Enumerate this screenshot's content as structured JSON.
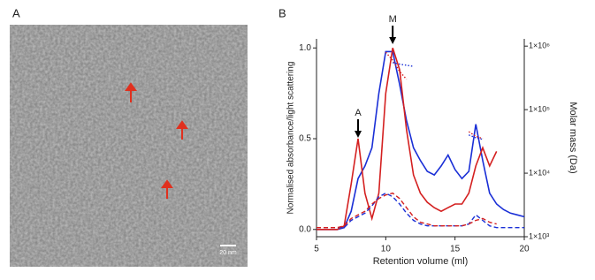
{
  "panels": {
    "a": {
      "label": "A",
      "scale_bar": "20 nm"
    },
    "b": {
      "label": "B"
    }
  },
  "chart_data": {
    "type": "line",
    "x_label": "Retention volume (ml)",
    "y_label": "Normalised absorbance/light scattering",
    "y2_label": "Molar mass (Da)",
    "xlim": [
      5,
      20
    ],
    "xticks": [
      5,
      10,
      15,
      20
    ],
    "ylim": [
      -0.04,
      1.05
    ],
    "yticks": [
      {
        "value": 0,
        "label": "0.0"
      },
      {
        "value": 0.5,
        "label": "0.5"
      },
      {
        "value": 1,
        "label": "1.0"
      }
    ],
    "y2lim": [
      1000,
      1300000
    ],
    "y2scale": "log",
    "y2ticks": [
      {
        "value": 1000,
        "label": "1×10³"
      },
      {
        "value": 10000,
        "label": "1×10⁴"
      },
      {
        "value": 100000,
        "label": "1×10⁵"
      },
      {
        "value": 1000000,
        "label": "1×10⁶"
      }
    ],
    "annotations": [
      {
        "text": "A",
        "x": 8
      },
      {
        "text": "M",
        "x": 10.5
      }
    ],
    "x": [
      5,
      5.5,
      6,
      6.5,
      7,
      7.5,
      8,
      8.5,
      9,
      9.5,
      10,
      10.5,
      11,
      11.5,
      12,
      12.5,
      13,
      13.5,
      14,
      14.5,
      15,
      15.5,
      16,
      16.5,
      17,
      17.5,
      18,
      18.5,
      19,
      19.5,
      20
    ],
    "series": [
      {
        "color": "#1a2fd6",
        "style": "solid",
        "values": [
          0,
          0,
          0,
          0,
          0.01,
          0.1,
          0.28,
          0.35,
          0.45,
          0.75,
          0.98,
          0.98,
          0.8,
          0.6,
          0.45,
          0.38,
          0.32,
          0.3,
          0.35,
          0.41,
          0.33,
          0.28,
          0.32,
          0.58,
          0.38,
          0.2,
          0.14,
          0.11,
          0.09,
          0.08,
          0.07
        ]
      },
      {
        "color": "#d42020",
        "style": "solid",
        "values": [
          0,
          0,
          0,
          0,
          0.02,
          0.25,
          0.5,
          0.2,
          0.06,
          0.2,
          0.75,
          1,
          0.88,
          0.55,
          0.3,
          0.2,
          0.15,
          0.12,
          0.1,
          0.12,
          0.14,
          0.14,
          0.2,
          0.35,
          0.45,
          0.35,
          0.43,
          null,
          null,
          null,
          null
        ]
      },
      {
        "color": "#1a2fd6",
        "style": "dashed",
        "values": [
          0.01,
          0.01,
          0.01,
          0.01,
          0.01,
          0.05,
          0.07,
          0.09,
          0.13,
          0.18,
          0.2,
          0.18,
          0.14,
          0.09,
          0.05,
          0.03,
          0.02,
          0.02,
          0.02,
          0.02,
          0.02,
          0.02,
          0.03,
          0.08,
          0.05,
          0.02,
          0.01,
          0.01,
          0.01,
          0.01,
          0.01
        ]
      },
      {
        "color": "#d42020",
        "style": "dashed",
        "values": [
          0.01,
          0.01,
          0.01,
          0.01,
          0.02,
          0.06,
          0.08,
          0.1,
          0.14,
          0.17,
          0.19,
          0.2,
          0.17,
          0.12,
          0.07,
          0.04,
          0.03,
          0.02,
          0.02,
          0.02,
          0.02,
          0.02,
          0.03,
          0.05,
          0.06,
          0.04,
          0.03,
          null,
          null,
          null,
          null
        ]
      },
      {
        "color": "#d42020",
        "style": "dotted",
        "axis": "y2",
        "values": [
          null,
          null,
          null,
          null,
          null,
          null,
          null,
          null,
          null,
          null,
          800000,
          600000,
          400000,
          300000,
          null,
          null,
          null,
          null,
          null,
          null,
          null,
          null,
          45000,
          38000,
          35000,
          null,
          null,
          null,
          null,
          null,
          null
        ]
      },
      {
        "color": "#1a2fd6",
        "style": "dotted",
        "axis": "y2",
        "values": [
          null,
          null,
          null,
          null,
          null,
          null,
          null,
          null,
          null,
          null,
          null,
          550000,
          520000,
          500000,
          480000,
          null,
          null,
          null,
          null,
          null,
          null,
          null,
          40000,
          36000,
          34000,
          null,
          null,
          null,
          null,
          null,
          null
        ]
      }
    ]
  }
}
